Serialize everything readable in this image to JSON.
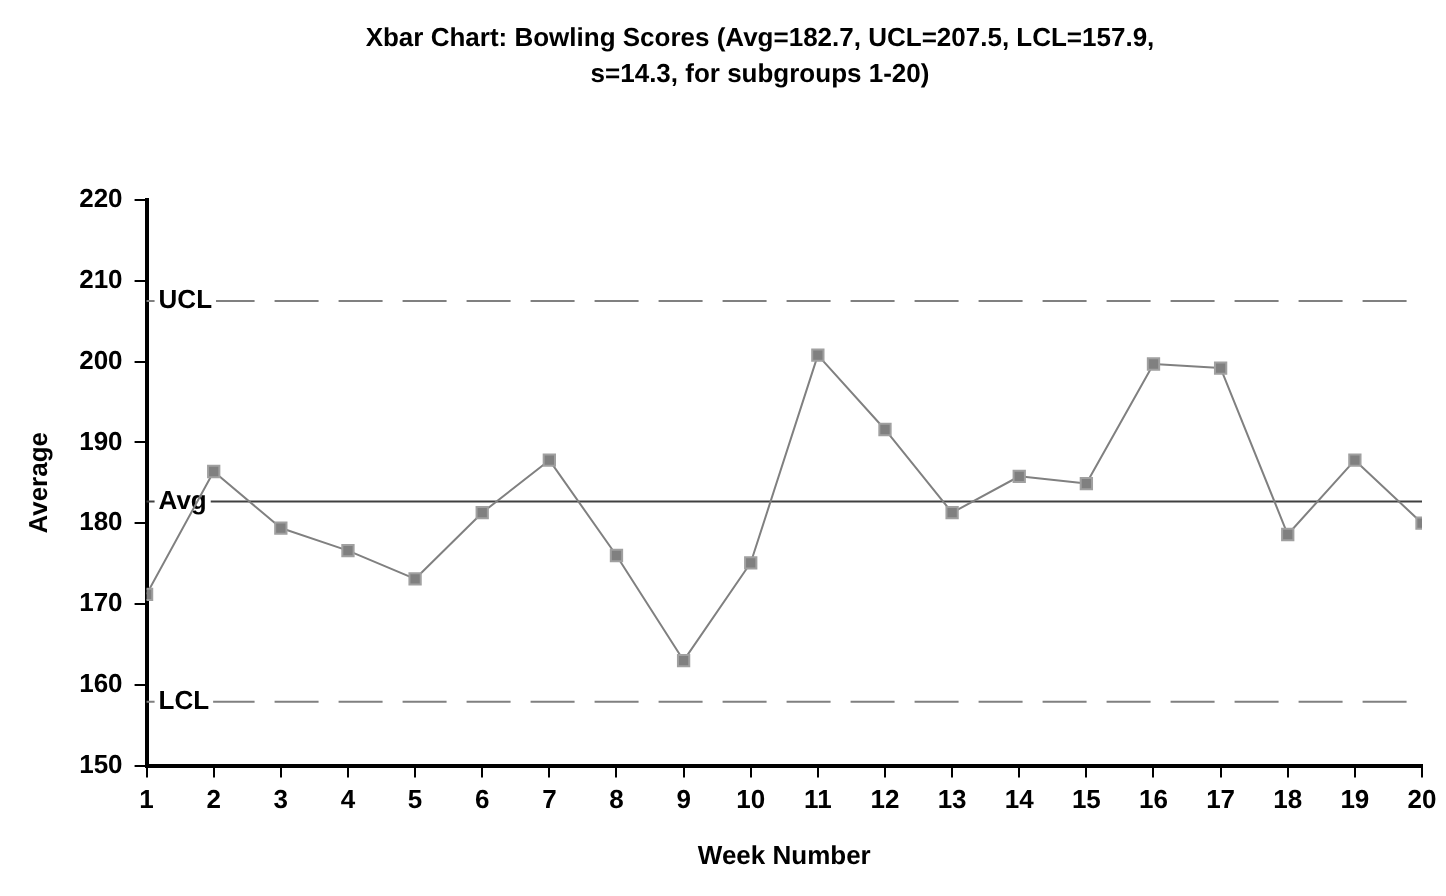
{
  "chart_data": {
    "type": "line",
    "title": "Xbar Chart: Bowling Scores (Avg=182.7, UCL=207.5, LCL=157.9, s=14.3, for subgroups 1-20)",
    "xlabel": "Week Number",
    "ylabel": "Average",
    "x": [
      1,
      2,
      3,
      4,
      5,
      6,
      7,
      8,
      9,
      10,
      11,
      12,
      13,
      14,
      15,
      16,
      17,
      18,
      19,
      20
    ],
    "series": [
      {
        "color": "#808080",
        "values": [
          171.2,
          186.4,
          179.4,
          176.6,
          173.1,
          181.3,
          187.8,
          176,
          163,
          175.1,
          200.8,
          191.6,
          181.3,
          185.8,
          184.9,
          199.7,
          199.2,
          178.6,
          187.8,
          180
        ]
      }
    ],
    "xlim": [
      1,
      20
    ],
    "xticks": [
      1,
      2,
      3,
      4,
      5,
      6,
      7,
      8,
      9,
      10,
      11,
      12,
      13,
      14,
      15,
      16,
      17,
      18,
      19,
      20
    ],
    "ylim": [
      150,
      220
    ],
    "yticks": [
      150,
      160,
      170,
      180,
      190,
      200,
      210,
      220
    ],
    "ref_lines": [
      {
        "axis": "y",
        "value": 207.5,
        "label": "UCL",
        "color": "#808080",
        "line_style": "dashed"
      },
      {
        "axis": "y",
        "value": 182.7,
        "label": "Avg",
        "color": "#404040",
        "line_style": "solid"
      },
      {
        "axis": "y",
        "value": 157.9,
        "label": "LCL",
        "color": "#808080",
        "line_style": "dashed"
      }
    ],
    "grid": false,
    "legend": false,
    "marker": "square",
    "line_style": "solid"
  }
}
